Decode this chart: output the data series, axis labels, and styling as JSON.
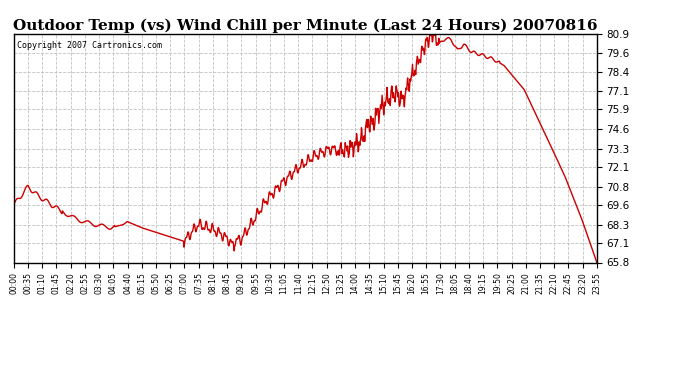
{
  "title": "Outdoor Temp (vs) Wind Chill per Minute (Last 24 Hours) 20070816",
  "copyright_text": "Copyright 2007 Cartronics.com",
  "title_fontsize": 11,
  "line_color": "#cc0000",
  "line_width": 1.0,
  "background_color": "#ffffff",
  "grid_color": "#bbbbbb",
  "ylim": [
    65.8,
    80.9
  ],
  "yticks": [
    65.8,
    67.1,
    68.3,
    69.6,
    70.8,
    72.1,
    73.3,
    74.6,
    75.9,
    77.1,
    78.4,
    79.6,
    80.9
  ],
  "xtick_labels": [
    "00:00",
    "00:35",
    "01:10",
    "01:45",
    "02:20",
    "02:55",
    "03:30",
    "04:05",
    "04:40",
    "05:15",
    "05:50",
    "06:25",
    "07:00",
    "07:35",
    "08:10",
    "08:45",
    "09:20",
    "09:55",
    "10:30",
    "11:05",
    "11:40",
    "12:15",
    "12:50",
    "13:25",
    "14:00",
    "14:35",
    "15:10",
    "15:45",
    "16:20",
    "16:55",
    "17:30",
    "18:05",
    "18:40",
    "19:15",
    "19:50",
    "20:25",
    "21:00",
    "21:35",
    "22:10",
    "22:45",
    "23:20",
    "23:55"
  ],
  "key_times": [
    0,
    35,
    60,
    105,
    130,
    160,
    200,
    240,
    270,
    280,
    315,
    350,
    385,
    420,
    455,
    490,
    510,
    530,
    545,
    360,
    375,
    390,
    560,
    590,
    620,
    660,
    700,
    740,
    780,
    820,
    855,
    870,
    875,
    880,
    885,
    895,
    900,
    920,
    940,
    960,
    980,
    990,
    1000,
    1010,
    1020,
    1035,
    1050,
    1065,
    1080,
    1095,
    1110,
    1130,
    1155,
    1185,
    1210,
    1235,
    1260,
    1290,
    1320,
    1360,
    1400,
    1439
  ],
  "key_vals": [
    69.6,
    70.8,
    70.2,
    69.4,
    69.0,
    68.6,
    68.3,
    68.1,
    68.3,
    68.5,
    68.1,
    67.8,
    67.5,
    67.2,
    68.3,
    68.0,
    67.7,
    67.3,
    66.8,
    67.4,
    67.2,
    66.9,
    67.3,
    68.5,
    69.8,
    71.0,
    72.0,
    72.8,
    73.3,
    73.2,
    73.8,
    74.5,
    75.3,
    74.8,
    75.0,
    75.5,
    75.8,
    76.5,
    77.0,
    76.5,
    78.0,
    78.5,
    79.2,
    79.8,
    80.4,
    80.9,
    80.2,
    80.6,
    80.5,
    79.8,
    80.2,
    79.7,
    79.5,
    79.2,
    78.8,
    78.0,
    77.2,
    75.5,
    73.8,
    71.5,
    68.8,
    65.8
  ]
}
